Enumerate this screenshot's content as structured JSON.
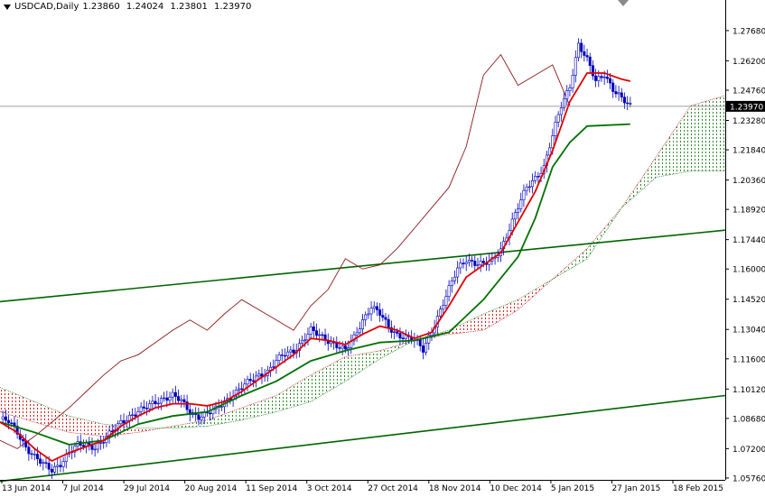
{
  "header": {
    "symbol": "USDCAD,Daily",
    "open": "1.23860",
    "high": "1.24024",
    "low": "1.23801",
    "close": "1.23970"
  },
  "current_price_label": "1.23970",
  "colors": {
    "candle": "#0000bb",
    "tenkan": "#e00000",
    "kijun": "#007000",
    "chikou": "#8b1a1a",
    "trendline": "#006400",
    "kumo_bull": "#2e8b2e",
    "kumo_bear": "#d42020",
    "price_line": "#808080"
  },
  "chart_data": {
    "type": "line",
    "indicator": "Ichimoku Kinko Hyo",
    "ylim": [
      1.0567,
      1.2856
    ],
    "y_ticks": [
      "1.27680",
      "1.26200",
      "1.24760",
      "1.23280",
      "1.21840",
      "1.20360",
      "1.18920",
      "1.17440",
      "1.16000",
      "1.14520",
      "1.13040",
      "1.11600",
      "1.10120",
      "1.08680",
      "1.07200",
      "1.05760"
    ],
    "x_ticks": [
      "13 Jun 2014",
      "7 Jul 2014",
      "29 Jul 2014",
      "20 Aug 2014",
      "11 Sep 2014",
      "3 Oct 2014",
      "27 Oct 2014",
      "18 Nov 2014",
      "10 Dec 2014",
      "5 Jan 2015",
      "27 Jan 2015",
      "18 Feb 2015"
    ],
    "current_price": 1.2397,
    "ohlc_last": {
      "open": 1.2386,
      "high": 1.24024,
      "low": 1.23801,
      "close": 1.2397
    },
    "price_close": [
      [
        0,
        1.0865
      ],
      [
        3,
        1.085
      ],
      [
        6,
        1.08
      ],
      [
        9,
        1.073
      ],
      [
        12,
        1.068
      ],
      [
        15,
        1.064
      ],
      [
        18,
        1.0615
      ],
      [
        21,
        1.065
      ],
      [
        24,
        1.07
      ],
      [
        27,
        1.0735
      ],
      [
        30,
        1.074
      ],
      [
        33,
        1.073
      ],
      [
        36,
        1.076
      ],
      [
        39,
        1.08
      ],
      [
        42,
        1.085
      ],
      [
        45,
        1.088
      ],
      [
        48,
        1.09
      ],
      [
        51,
        1.092
      ],
      [
        54,
        1.095
      ],
      [
        57,
        1.097
      ],
      [
        60,
        1.098
      ],
      [
        63,
        1.095
      ],
      [
        66,
        1.09
      ],
      [
        69,
        1.088
      ],
      [
        72,
        1.089
      ],
      [
        75,
        1.091
      ],
      [
        78,
        1.095
      ],
      [
        81,
        1.099
      ],
      [
        84,
        1.102
      ],
      [
        87,
        1.105
      ],
      [
        90,
        1.108
      ],
      [
        93,
        1.11
      ],
      [
        96,
        1.115
      ],
      [
        99,
        1.118
      ],
      [
        102,
        1.12
      ],
      [
        105,
        1.125
      ],
      [
        108,
        1.13
      ],
      [
        111,
        1.127
      ],
      [
        114,
        1.125
      ],
      [
        117,
        1.123
      ],
      [
        120,
        1.12
      ],
      [
        123,
        1.126
      ],
      [
        126,
        1.135
      ],
      [
        129,
        1.142
      ],
      [
        132,
        1.138
      ],
      [
        135,
        1.131
      ],
      [
        138,
        1.128
      ],
      [
        141,
        1.127
      ],
      [
        144,
        1.125
      ],
      [
        147,
        1.12
      ],
      [
        150,
        1.13
      ],
      [
        153,
        1.14
      ],
      [
        156,
        1.15
      ],
      [
        159,
        1.16
      ],
      [
        162,
        1.165
      ],
      [
        165,
        1.163
      ],
      [
        168,
        1.162
      ],
      [
        171,
        1.164
      ],
      [
        174,
        1.17
      ],
      [
        177,
        1.18
      ],
      [
        180,
        1.19
      ],
      [
        183,
        1.2
      ],
      [
        186,
        1.205
      ],
      [
        189,
        1.21
      ],
      [
        192,
        1.225
      ],
      [
        195,
        1.24
      ],
      [
        198,
        1.25
      ],
      [
        201,
        1.27
      ],
      [
        204,
        1.262
      ],
      [
        207,
        1.252
      ],
      [
        210,
        1.256
      ],
      [
        213,
        1.248
      ],
      [
        216,
        1.243
      ],
      [
        219,
        1.2397
      ]
    ],
    "series": [
      {
        "name": "Tenkan-sen",
        "values": [
          [
            0,
            1.085
          ],
          [
            6,
            1.08
          ],
          [
            12,
            1.072
          ],
          [
            18,
            1.066
          ],
          [
            24,
            1.07
          ],
          [
            30,
            1.073
          ],
          [
            36,
            1.076
          ],
          [
            42,
            1.083
          ],
          [
            48,
            1.088
          ],
          [
            54,
            1.092
          ],
          [
            60,
            1.094
          ],
          [
            66,
            1.094
          ],
          [
            72,
            1.093
          ],
          [
            78,
            1.095
          ],
          [
            84,
            1.1
          ],
          [
            90,
            1.106
          ],
          [
            96,
            1.112
          ],
          [
            102,
            1.118
          ],
          [
            108,
            1.126
          ],
          [
            114,
            1.125
          ],
          [
            120,
            1.123
          ],
          [
            126,
            1.128
          ],
          [
            132,
            1.132
          ],
          [
            138,
            1.13
          ],
          [
            144,
            1.126
          ],
          [
            150,
            1.129
          ],
          [
            156,
            1.142
          ],
          [
            162,
            1.156
          ],
          [
            168,
            1.162
          ],
          [
            174,
            1.168
          ],
          [
            180,
            1.183
          ],
          [
            186,
            1.198
          ],
          [
            192,
            1.218
          ],
          [
            198,
            1.242
          ],
          [
            204,
            1.256
          ],
          [
            210,
            1.256
          ],
          [
            216,
            1.253
          ],
          [
            219,
            1.252
          ]
        ]
      },
      {
        "name": "Kijun-sen",
        "values": [
          [
            0,
            1.085
          ],
          [
            12,
            1.08
          ],
          [
            24,
            1.074
          ],
          [
            36,
            1.076
          ],
          [
            48,
            1.084
          ],
          [
            60,
            1.088
          ],
          [
            72,
            1.09
          ],
          [
            84,
            1.098
          ],
          [
            96,
            1.105
          ],
          [
            108,
            1.115
          ],
          [
            120,
            1.12
          ],
          [
            132,
            1.124
          ],
          [
            144,
            1.125
          ],
          [
            156,
            1.129
          ],
          [
            168,
            1.145
          ],
          [
            180,
            1.166
          ],
          [
            186,
            1.185
          ],
          [
            192,
            1.21
          ],
          [
            198,
            1.222
          ],
          [
            204,
            1.23
          ],
          [
            219,
            1.231
          ]
        ]
      },
      {
        "name": "Chikou Span",
        "values": [
          [
            0,
            1.076
          ],
          [
            6,
            1.072
          ],
          [
            12,
            1.078
          ],
          [
            18,
            1.085
          ],
          [
            24,
            1.092
          ],
          [
            30,
            1.1
          ],
          [
            36,
            1.108
          ],
          [
            42,
            1.115
          ],
          [
            48,
            1.118
          ],
          [
            54,
            1.124
          ],
          [
            60,
            1.13
          ],
          [
            66,
            1.135
          ],
          [
            72,
            1.13
          ],
          [
            78,
            1.138
          ],
          [
            84,
            1.145
          ],
          [
            90,
            1.14
          ],
          [
            96,
            1.135
          ],
          [
            102,
            1.13
          ],
          [
            108,
            1.142
          ],
          [
            114,
            1.15
          ],
          [
            120,
            1.165
          ],
          [
            126,
            1.16
          ],
          [
            132,
            1.162
          ],
          [
            138,
            1.17
          ],
          [
            144,
            1.18
          ],
          [
            150,
            1.19
          ],
          [
            156,
            1.2
          ],
          [
            162,
            1.22
          ],
          [
            168,
            1.255
          ],
          [
            174,
            1.265
          ],
          [
            180,
            1.25
          ],
          [
            186,
            1.255
          ],
          [
            192,
            1.26
          ],
          [
            198,
            1.24
          ]
        ]
      },
      {
        "name": "Senkou Span A",
        "values": [
          [
            0,
            1.09
          ],
          [
            12,
            1.085
          ],
          [
            24,
            1.08
          ],
          [
            36,
            1.078
          ],
          [
            48,
            1.08
          ],
          [
            60,
            1.083
          ],
          [
            72,
            1.086
          ],
          [
            84,
            1.092
          ],
          [
            96,
            1.098
          ],
          [
            108,
            1.108
          ],
          [
            120,
            1.117
          ],
          [
            132,
            1.12
          ],
          [
            144,
            1.125
          ],
          [
            156,
            1.128
          ],
          [
            168,
            1.13
          ],
          [
            180,
            1.14
          ],
          [
            192,
            1.155
          ],
          [
            204,
            1.17
          ],
          [
            216,
            1.19
          ],
          [
            228,
            1.215
          ],
          [
            240,
            1.24
          ],
          [
            252,
            1.245
          ]
        ]
      },
      {
        "name": "Senkou Span B",
        "values": [
          [
            0,
            1.102
          ],
          [
            12,
            1.095
          ],
          [
            24,
            1.088
          ],
          [
            36,
            1.084
          ],
          [
            48,
            1.082
          ],
          [
            60,
            1.082
          ],
          [
            72,
            1.083
          ],
          [
            84,
            1.086
          ],
          [
            96,
            1.09
          ],
          [
            108,
            1.095
          ],
          [
            120,
            1.105
          ],
          [
            132,
            1.116
          ],
          [
            144,
            1.125
          ],
          [
            156,
            1.13
          ],
          [
            168,
            1.138
          ],
          [
            180,
            1.145
          ],
          [
            192,
            1.155
          ],
          [
            204,
            1.165
          ],
          [
            216,
            1.19
          ],
          [
            228,
            1.205
          ],
          [
            240,
            1.208
          ],
          [
            252,
            1.208
          ]
        ]
      },
      {
        "name": "Upper trendline",
        "values": [
          [
            0,
            1.144
          ],
          [
            252,
            1.179
          ]
        ]
      },
      {
        "name": "Lower trendline",
        "values": [
          [
            0,
            1.056
          ],
          [
            252,
            1.098
          ]
        ]
      }
    ],
    "grid": false,
    "legend": "none"
  }
}
